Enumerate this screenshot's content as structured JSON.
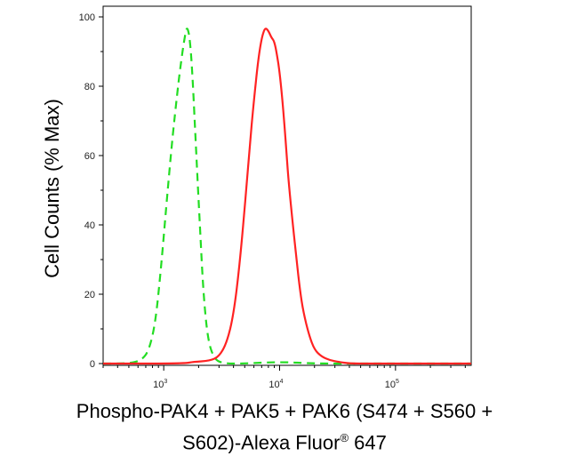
{
  "chart_data": {
    "type": "line",
    "title": "",
    "ylabel": "Cell Counts (% Max)",
    "xlabel_line1": "Phospho-PAK4 + PAK5 + PAK6 (S474 + S560 +",
    "xlabel_line2_main": "S602)-Alexa Fluor",
    "xlabel_line2_sup": "®",
    "xlabel_line2_tail": " 647",
    "x_scale": "log",
    "xlim": [
      300,
      450000
    ],
    "ylim": [
      0,
      100
    ],
    "y_ticks": [
      0,
      20,
      40,
      60,
      80,
      100
    ],
    "y_tick_labels": [
      "0",
      "20",
      "40",
      "60",
      "80",
      "100"
    ],
    "x_ticks": [
      1000,
      10000,
      100000
    ],
    "x_tick_labels": [
      {
        "base": "10",
        "exp": "3"
      },
      {
        "base": "10",
        "exp": "4"
      },
      {
        "base": "10",
        "exp": "5"
      }
    ],
    "series": [
      {
        "name": "green dashed",
        "color": "#22dd22",
        "style": "dashed",
        "x": [
          300,
          500,
          650,
          750,
          850,
          950,
          1050,
          1150,
          1250,
          1350,
          1450,
          1550,
          1600,
          1680,
          1780,
          1900,
          2050,
          2200,
          2400,
          2700,
          3200,
          5000,
          10000,
          20000,
          50000,
          100000,
          450000
        ],
        "y": [
          0,
          0,
          1,
          4,
          12,
          28,
          45,
          60,
          72,
          82,
          90,
          96,
          97,
          94,
          82,
          62,
          40,
          20,
          7,
          1.5,
          0,
          0,
          0.5,
          0,
          0,
          0,
          0
        ]
      },
      {
        "name": "red solid",
        "color": "#ff2222",
        "style": "solid",
        "x": [
          300,
          1500,
          1800,
          2500,
          3000,
          3500,
          4000,
          4500,
          5000,
          5500,
          6000,
          6500,
          7000,
          7500,
          8000,
          8500,
          9000,
          9500,
          10000,
          10500,
          11000,
          11500,
          12000,
          13000,
          14000,
          15000,
          16000,
          18000,
          20000,
          23000,
          27000,
          32000,
          40000,
          60000,
          100000,
          200000,
          450000
        ],
        "y": [
          0,
          0,
          0.5,
          0.8,
          2,
          6,
          14,
          28,
          45,
          62,
          76,
          87,
          94,
          97,
          96,
          94,
          93,
          89,
          84,
          77,
          69,
          60,
          52,
          40,
          30,
          21,
          15,
          8,
          4,
          2,
          1,
          0.5,
          0,
          0,
          0,
          0,
          0
        ]
      }
    ]
  }
}
